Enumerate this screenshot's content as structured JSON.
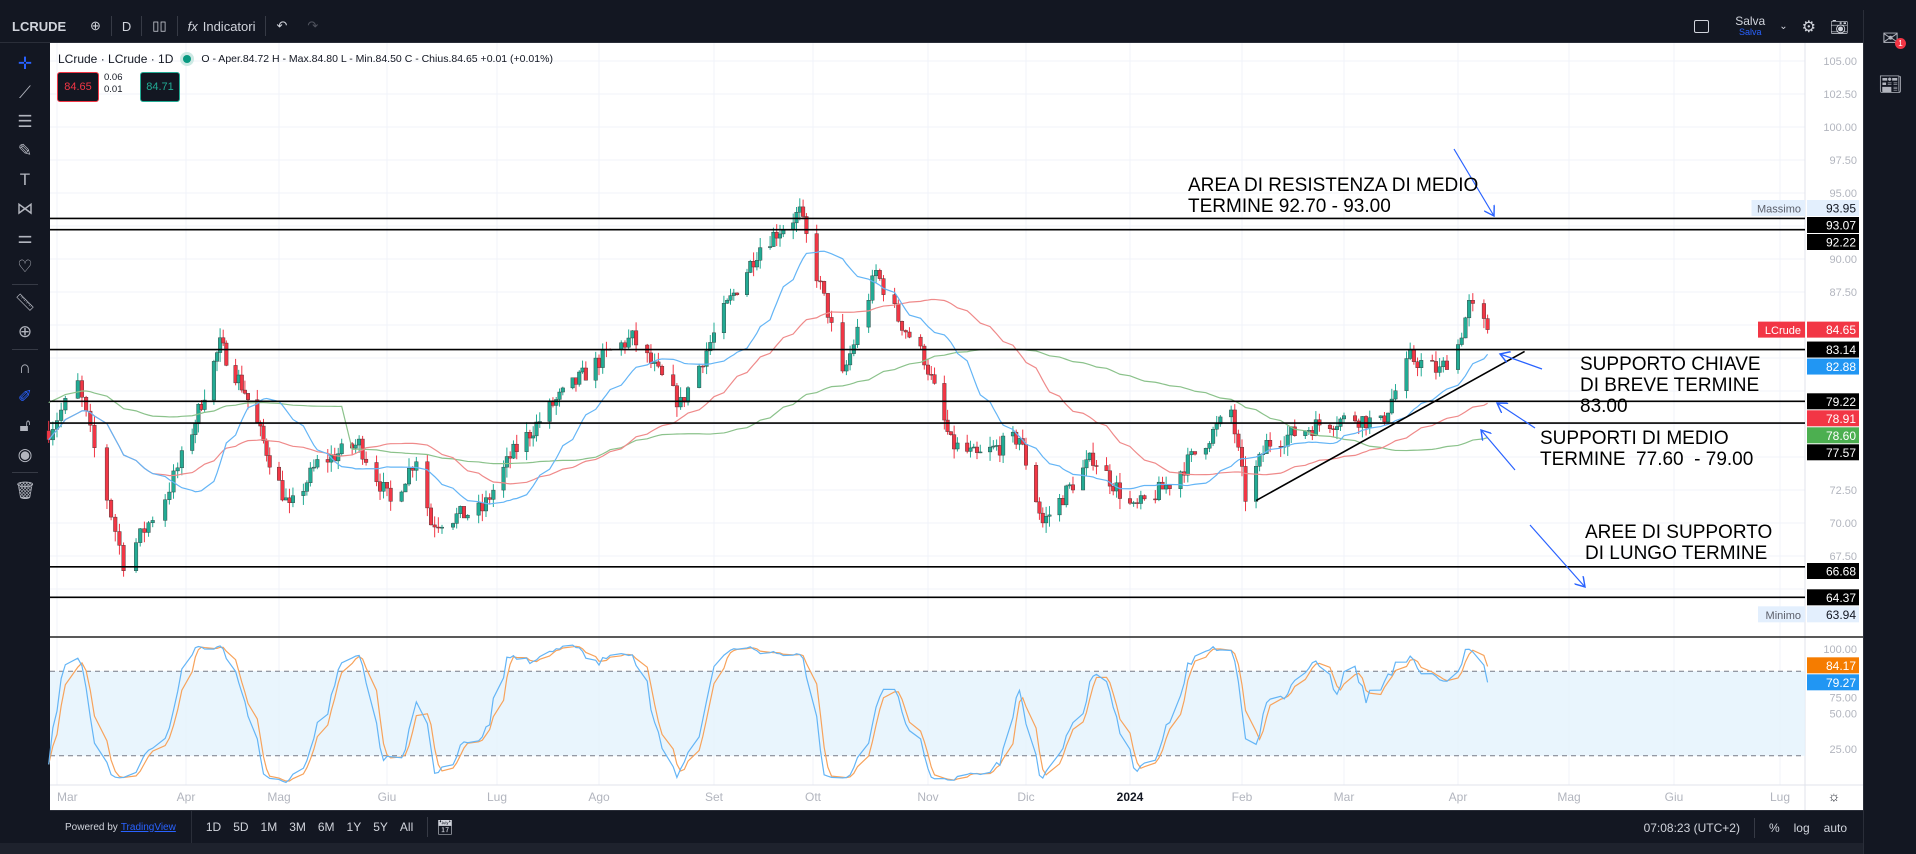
{
  "toolbar": {
    "symbol": "LCRUDE",
    "interval": "D",
    "indicators_label": "Indicatori",
    "save_label": "Salva",
    "save_sub": "Salva"
  },
  "legend": {
    "title": "LCrude · LCrude · 1D",
    "ohlc": "O - Aper.84.72  H - Max.84.80  L - Min.84.50  C - Chius.84.65  +0.01 (+0.01%)",
    "sell": "84.65",
    "spread_top": "0.06",
    "spread_bottom": "0.01",
    "buy": "84.71"
  },
  "right_sidebar": {
    "notification_count": "1"
  },
  "annotations": {
    "resistance": "AREA DI RESISTENZA DI MEDIO\nTERMINE 92.70 - 93.00",
    "key_support": "SUPPORTO CHIAVE\nDI BREVE TERMINE\n83.00",
    "mid_support": "SUPPORTI DI MEDIO\nTERMINE  77.60  - 79.00",
    "long_support": "AREE DI SUPPORTO\nDI LUNGO TERMINE"
  },
  "chart": {
    "price_ticks": [
      "105.00",
      "102.50",
      "100.00",
      "97.50",
      "95.00",
      "90.00",
      "87.50",
      "72.50",
      "70.00",
      "67.50"
    ],
    "month_labels": [
      "Mar",
      "Apr",
      "Mag",
      "Giu",
      "Lug",
      "Ago",
      "Set",
      "Ott",
      "Nov",
      "Dic",
      "2024",
      "Feb",
      "Mar",
      "Apr",
      "Mag",
      "Giu",
      "Lug"
    ],
    "month_dates": [
      "2023-03-01",
      "2023-04-01",
      "2023-05-01",
      "2023-06-01",
      "2023-07-01",
      "2023-08-01",
      "2023-09-01",
      "2023-10-01",
      "2023-11-01",
      "2023-12-01",
      "2024-01-01",
      "2024-02-01",
      "2024-03-01",
      "2024-04-01",
      "2024-05-01",
      "2024-06-01",
      "2024-07-01"
    ],
    "horizontal_levels": [
      93.07,
      92.22,
      83.14,
      79.22,
      77.57,
      66.68,
      64.37
    ],
    "trendline": [
      [
        "2024-02-05",
        71.7
      ],
      [
        "2024-04-19",
        83.0
      ]
    ],
    "axis_labels": [
      {
        "text": "93.95",
        "tag": "Massimo",
        "value": 93.95,
        "bg": "#e3effd",
        "fg": "#131722"
      },
      {
        "text": "93.07",
        "value": 93.07,
        "bg": "#000000",
        "fg": "#ffffff"
      },
      {
        "text": "92.22",
        "value": 92.22,
        "bg": "#000000",
        "fg": "#ffffff"
      },
      {
        "text": "84.65",
        "tag": "LCrude",
        "value": 84.65,
        "bg": "#f23645",
        "fg": "#ffffff"
      },
      {
        "text": "83.14",
        "value": 83.14,
        "bg": "#000000",
        "fg": "#ffffff"
      },
      {
        "text": "82.88",
        "value": 82.88,
        "bg": "#2196f3",
        "fg": "#ffffff"
      },
      {
        "text": "79.22",
        "value": 79.22,
        "bg": "#000000",
        "fg": "#ffffff"
      },
      {
        "text": "78.91",
        "value": 78.91,
        "bg": "#f23645",
        "fg": "#ffffff"
      },
      {
        "text": "78.60",
        "value": 78.6,
        "bg": "#4caf50",
        "fg": "#ffffff"
      },
      {
        "text": "77.57",
        "value": 77.57,
        "bg": "#000000",
        "fg": "#ffffff"
      },
      {
        "text": "66.68",
        "value": 66.68,
        "bg": "#000000",
        "fg": "#ffffff"
      },
      {
        "text": "64.37",
        "value": 64.37,
        "bg": "#000000",
        "fg": "#ffffff"
      },
      {
        "text": "63.94",
        "tag": "Minimo",
        "value": 63.94,
        "bg": "#e3effd",
        "fg": "#131722"
      }
    ],
    "price_path": [
      [
        "2023-02-27",
        77
      ],
      [
        "2023-03-06",
        80.5
      ],
      [
        "2023-03-17",
        67
      ],
      [
        "2023-03-27",
        72
      ],
      [
        "2023-04-12",
        83.5
      ],
      [
        "2023-04-20",
        80
      ],
      [
        "2023-05-04",
        71
      ],
      [
        "2023-05-12",
        74.5
      ],
      [
        "2023-05-24",
        76
      ],
      [
        "2023-06-02",
        71.5
      ],
      [
        "2023-06-09",
        75
      ],
      [
        "2023-06-13",
        70
      ],
      [
        "2023-06-27",
        71
      ],
      [
        "2023-07-05",
        75
      ],
      [
        "2023-07-18",
        79
      ],
      [
        "2023-08-04",
        83
      ],
      [
        "2023-08-10",
        84
      ],
      [
        "2023-08-23",
        79
      ],
      [
        "2023-09-04",
        86
      ],
      [
        "2023-09-15",
        91
      ],
      [
        "2023-09-27",
        93.5
      ],
      [
        "2023-10-05",
        86
      ],
      [
        "2023-10-09",
        81
      ],
      [
        "2023-10-18",
        89
      ],
      [
        "2023-10-24",
        85.5
      ],
      [
        "2023-10-31",
        82.5
      ],
      [
        "2023-11-08",
        76
      ],
      [
        "2023-11-16",
        75
      ],
      [
        "2023-11-29",
        76.5
      ],
      [
        "2023-12-06",
        70
      ],
      [
        "2023-12-12",
        72
      ],
      [
        "2023-12-21",
        75
      ],
      [
        "2024-01-02",
        71
      ],
      [
        "2024-01-12",
        73
      ],
      [
        "2024-01-29",
        78.5
      ],
      [
        "2024-02-02",
        72
      ],
      [
        "2024-02-08",
        76
      ],
      [
        "2024-02-23",
        77.5
      ],
      [
        "2024-03-04",
        78
      ],
      [
        "2024-03-11",
        77.5
      ],
      [
        "2024-03-19",
        82.5
      ],
      [
        "2024-03-27",
        81.5
      ],
      [
        "2024-04-01",
        83.5
      ],
      [
        "2024-04-04",
        86.5
      ],
      [
        "2024-04-09",
        84.65
      ]
    ],
    "colors": {
      "up": "#22ab94",
      "down": "#f23645",
      "ma_fast": "#64b5f6",
      "ma_mid": "#ef8a8a",
      "ma_slow": "#8bc28b",
      "stoch_k": "#64b5f6",
      "stoch_d": "#f7a35c"
    },
    "stoch_ticks": [
      "100.00",
      "75.00",
      "50.00",
      "25.00"
    ],
    "stoch_labels": [
      {
        "text": "84.17",
        "value": 84.17,
        "bg": "#f57c00"
      },
      {
        "text": "79.27",
        "value": 79.27,
        "bg": "#2196f3"
      }
    ]
  },
  "bottom": {
    "powered": "Powered by",
    "brand": "TradingView",
    "ranges": [
      "1D",
      "5D",
      "1M",
      "3M",
      "6M",
      "1Y",
      "5Y",
      "All"
    ],
    "time": "07:08:23 (UTC+2)",
    "percent": "%",
    "log": "log",
    "auto": "auto"
  }
}
